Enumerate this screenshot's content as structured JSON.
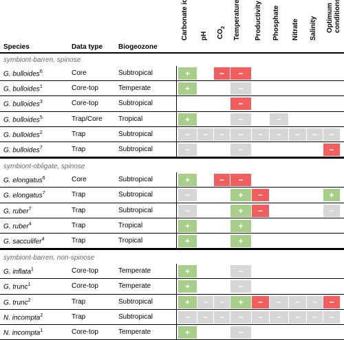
{
  "headers": {
    "species": "Species",
    "data_type": "Data type",
    "biogeozone": "Biogeozone",
    "params": [
      "Carbonate ion",
      "pH",
      "CO2",
      "Temperature",
      "Productivity",
      "Phosphate",
      "Nitrate",
      "Salinity",
      "Optimum conditions"
    ]
  },
  "symbols": {
    "positive": "+",
    "negative": "−",
    "neutral": "~"
  },
  "sections": [
    {
      "title": "symbiont-barren, spinose",
      "rows": [
        {
          "species": "G. bulloides",
          "ref": "6",
          "data_type": "Core",
          "biogeozone": "Subtropical",
          "cells": [
            "g",
            "",
            "r",
            "r",
            "",
            "",
            "",
            "",
            ""
          ]
        },
        {
          "species": "G. bulloides",
          "ref": "1",
          "data_type": "Core-top",
          "biogeozone": "Temperate",
          "cells": [
            "g",
            "",
            "",
            "n",
            "",
            "",
            "",
            "",
            ""
          ]
        },
        {
          "species": "G. bulloides",
          "ref": "3",
          "data_type": "Core-top",
          "biogeozone": "Subtropical",
          "cells": [
            "",
            "",
            "",
            "r",
            "",
            "",
            "",
            "",
            ""
          ]
        },
        {
          "species": "G. bulloides",
          "ref": "5",
          "data_type": "Trap/Core",
          "biogeozone": "Tropical",
          "cells": [
            "g",
            "",
            "",
            "n",
            "",
            "n",
            "",
            "",
            ""
          ]
        },
        {
          "species": "G. bulloides",
          "ref": "2",
          "data_type": "Trap",
          "biogeozone": "Subtropical",
          "cells": [
            "n",
            "n",
            "n",
            "n",
            "n",
            "n",
            "n",
            "n",
            "n"
          ]
        },
        {
          "species": "G. bulloides",
          "ref": "7",
          "data_type": "Trap",
          "biogeozone": "Subtropical",
          "cells": [
            "n",
            "",
            "",
            "n",
            "",
            "",
            "",
            "",
            "r"
          ]
        }
      ]
    },
    {
      "title": "symbiont-obligate, spinose",
      "rows": [
        {
          "species": "G. elongatus",
          "ref": "6",
          "data_type": "Core",
          "biogeozone": "Subtropical",
          "cells": [
            "g",
            "",
            "r",
            "r",
            "",
            "",
            "",
            "",
            ""
          ]
        },
        {
          "species": "G. elongatus",
          "ref": "7",
          "data_type": "Trap",
          "biogeozone": "Subtropical",
          "cells": [
            "n",
            "",
            "",
            "g",
            "r",
            "",
            "",
            "",
            "g"
          ]
        },
        {
          "species": "G. ruber",
          "ref": "7",
          "data_type": "Trap",
          "biogeozone": "Subtropical",
          "cells": [
            "n",
            "",
            "",
            "g",
            "r",
            "",
            "",
            "",
            "n"
          ]
        },
        {
          "species": "G. ruber",
          "ref": "4",
          "data_type": "Trap",
          "biogeozone": "Tropical",
          "cells": [
            "g",
            "",
            "",
            "g",
            "",
            "",
            "",
            "",
            ""
          ]
        },
        {
          "species": "G. sacculifer",
          "ref": "4",
          "data_type": "Trap",
          "biogeozone": "Tropical",
          "cells": [
            "g",
            "",
            "",
            "g",
            "",
            "",
            "",
            "",
            ""
          ]
        }
      ]
    },
    {
      "title": "symbiont-barren, non-spinose",
      "rows": [
        {
          "species": "G. inflata",
          "ref": "1",
          "data_type": "Core-top",
          "biogeozone": "Temperate",
          "cells": [
            "g",
            "",
            "",
            "n",
            "",
            "",
            "",
            "",
            ""
          ]
        },
        {
          "species": "G. trunc",
          "ref": "1",
          "data_type": "Core-top",
          "biogeozone": "Temperate",
          "cells": [
            "g",
            "",
            "",
            "n",
            "",
            "",
            "",
            "",
            ""
          ]
        },
        {
          "species": "G. trunc",
          "ref": "2",
          "data_type": "Trap",
          "biogeozone": "Subtropical",
          "cells": [
            "g",
            "n",
            "n",
            "g",
            "r",
            "n",
            "n",
            "n",
            "r"
          ]
        },
        {
          "species": "N. incompta",
          "ref": "2",
          "data_type": "Trap",
          "biogeozone": "Subtropical",
          "cells": [
            "n",
            "n",
            "n",
            "n",
            "n",
            "n",
            "n",
            "n",
            "n"
          ]
        },
        {
          "species": "N. incompta",
          "ref": "1",
          "data_type": "Core-top",
          "biogeozone": "Temperate",
          "cells": [
            "g",
            "",
            "",
            "n",
            "",
            "",
            "",
            "",
            ""
          ]
        }
      ]
    }
  ]
}
